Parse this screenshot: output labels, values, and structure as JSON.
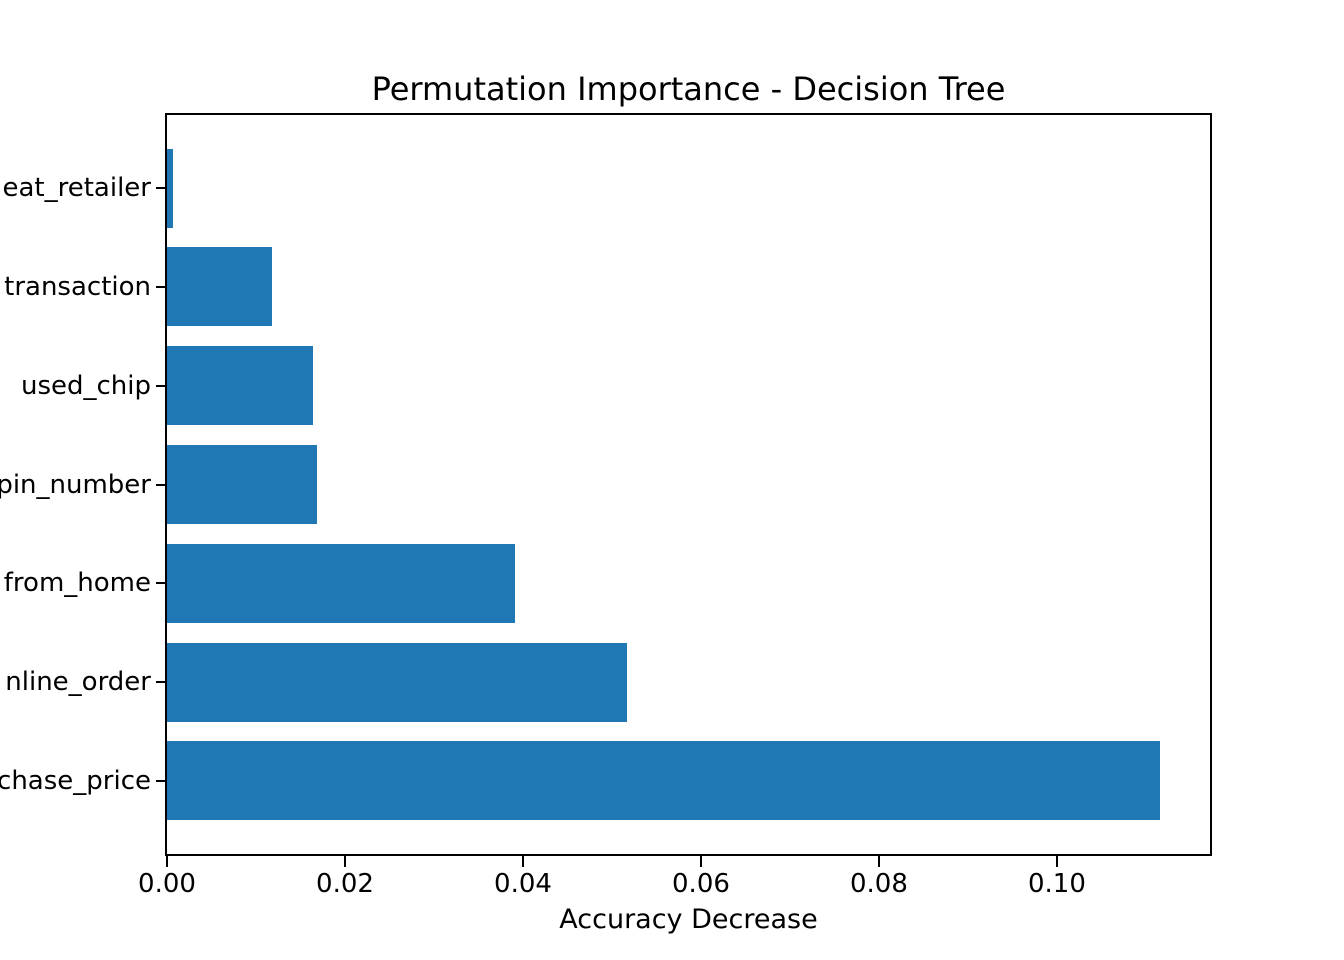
{
  "chart_data": {
    "type": "bar",
    "orientation": "horizontal",
    "title": "Permutation Importance - Decision Tree",
    "xlabel": "Accuracy Decrease",
    "ylabel": "",
    "legend": null,
    "grid": false,
    "bar_color": "#1f77b4",
    "categories": [
      "eat_retailer",
      "transaction",
      "used_chip",
      "pin_number",
      "from_home",
      "nline_order",
      "chase_price"
    ],
    "values": [
      0.0007,
      0.0118,
      0.0164,
      0.0169,
      0.0391,
      0.0517,
      0.1116
    ],
    "xlim": [
      0,
      0.1172
    ],
    "xticks": {
      "values": [
        0.0,
        0.02,
        0.04,
        0.06,
        0.08,
        0.1
      ],
      "labels": [
        "0.00",
        "0.02",
        "0.04",
        "0.06",
        "0.08",
        "0.10"
      ]
    }
  }
}
